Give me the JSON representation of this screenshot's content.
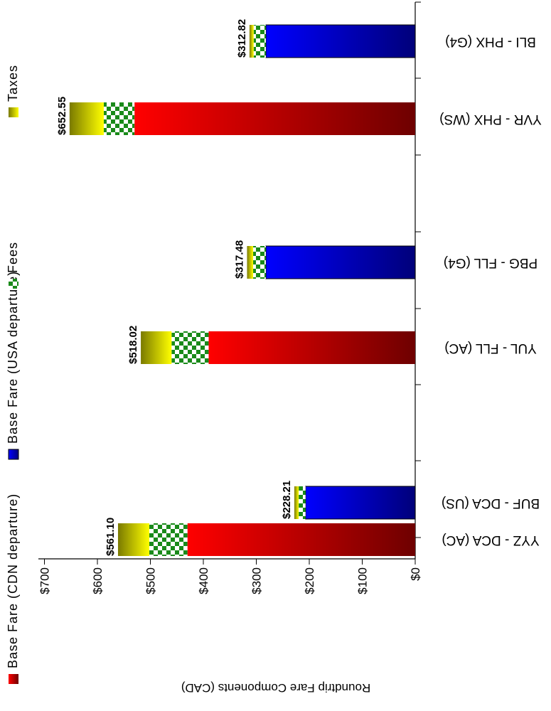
{
  "chart_data": {
    "type": "bar",
    "orientation": "horizontal-stacked",
    "ylabel": "Roundtrip Fare Components (CAD)",
    "xlim": [
      0,
      700
    ],
    "ticks": [
      0,
      100,
      200,
      300,
      400,
      500,
      600,
      700
    ],
    "tick_labels": [
      "$0",
      "$100",
      "$200",
      "$300",
      "$400",
      "$500",
      "$600",
      "$700"
    ],
    "categories": [
      "YYZ - DCA (AC)",
      "BUF - DCA (US)",
      "YUL - FLL (AC)",
      "PBG - FLL (G4)",
      "YVR - PHX (WS)",
      "BLI - PHX (G4)"
    ],
    "series": [
      {
        "name": "Base Fare (CDN departure)",
        "values": [
          430,
          null,
          390,
          null,
          530,
          null
        ]
      },
      {
        "name": "Base Fare (USA departure)",
        "values": [
          null,
          207,
          null,
          282,
          null,
          282
        ]
      },
      {
        "name": "Fees",
        "values": [
          72,
          13,
          70,
          24,
          58,
          23
        ]
      },
      {
        "name": "Taxes",
        "values": [
          59.1,
          8.21,
          58.02,
          11.48,
          64.55,
          7.82
        ]
      }
    ],
    "totals": [
      561.1,
      228.21,
      518.02,
      317.48,
      652.55,
      312.82
    ],
    "total_labels": [
      "$561.10",
      "$228.21",
      "$518.02",
      "$317.48",
      "$652.55",
      "$312.82"
    ],
    "legend_position": "right",
    "grid": false,
    "colors": {
      "cdn_light": "#ff0000",
      "cdn_dark": "#6e0000",
      "usa_light": "#0000ff",
      "usa_dark": "#00007a",
      "fees_green": "#1a8a1a",
      "taxes_light": "#ffff00",
      "taxes_dark": "#7a7a00"
    }
  }
}
